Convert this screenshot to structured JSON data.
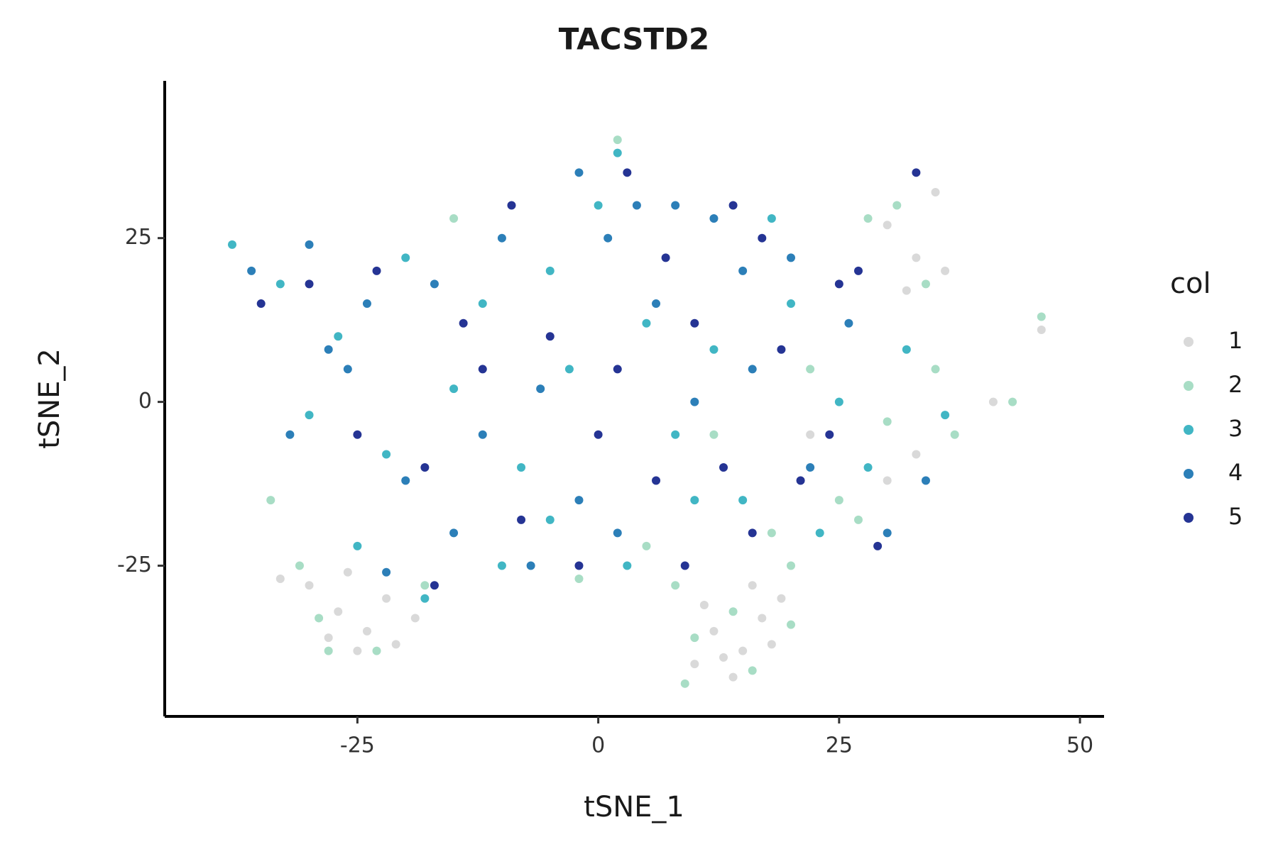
{
  "chart_data": {
    "type": "scatter",
    "title": "TACSTD2",
    "x_label": "tSNE_1",
    "y_label": "tSNE_2",
    "legend_title": "col",
    "legend_position": "right",
    "grid": false,
    "xlim": [
      -45,
      52.5
    ],
    "ylim": [
      -48,
      49
    ],
    "xticks": [
      -25,
      0,
      25,
      50
    ],
    "yticks": [
      -25,
      0,
      25
    ],
    "series": [
      {
        "name": "1",
        "color": "#d9d9d9",
        "x": [
          -30,
          -27,
          -24,
          -22,
          -28,
          -25,
          -19,
          -33,
          -21,
          -26,
          12,
          15,
          17,
          10,
          14,
          18,
          11,
          16,
          13,
          19,
          30,
          33,
          35,
          32,
          36,
          46,
          41,
          33,
          30,
          22
        ],
        "values": [
          -28,
          -32,
          -35,
          -30,
          -36,
          -38,
          -33,
          -27,
          -37,
          -26,
          -35,
          -38,
          -33,
          -40,
          -42,
          -37,
          -31,
          -28,
          -39,
          -30,
          27,
          22,
          32,
          17,
          20,
          11,
          0,
          -8,
          -12,
          -5
        ]
      },
      {
        "name": "2",
        "color": "#a8ddc5",
        "x": [
          -31,
          -23,
          -29,
          -18,
          -34,
          10,
          14,
          20,
          16,
          8,
          28,
          34,
          31,
          46,
          43,
          25,
          18,
          30,
          35,
          5,
          -2,
          12,
          22,
          -15,
          2,
          27,
          -28,
          9,
          37,
          20
        ],
        "values": [
          -25,
          -38,
          -33,
          -28,
          -15,
          -36,
          -32,
          -34,
          -41,
          -28,
          28,
          18,
          30,
          13,
          0,
          -15,
          -20,
          -3,
          5,
          -22,
          -27,
          -5,
          5,
          28,
          40,
          -18,
          -38,
          -43,
          -5,
          -25
        ]
      },
      {
        "name": "3",
        "color": "#41b6c4",
        "x": [
          -38,
          -33,
          -27,
          -20,
          -12,
          -30,
          -22,
          -15,
          -8,
          -3,
          0,
          2,
          -5,
          5,
          8,
          12,
          15,
          20,
          25,
          28,
          32,
          36,
          -10,
          -5,
          3,
          18,
          -25,
          -18,
          10,
          23
        ],
        "values": [
          24,
          18,
          10,
          22,
          15,
          -2,
          -8,
          2,
          -10,
          5,
          30,
          38,
          20,
          12,
          -5,
          8,
          -15,
          15,
          0,
          -10,
          8,
          -2,
          -25,
          -18,
          -25,
          28,
          -22,
          -30,
          -15,
          -20
        ]
      },
      {
        "name": "4",
        "color": "#2c7fb8",
        "x": [
          -36,
          -30,
          -24,
          -17,
          -32,
          -26,
          -20,
          -12,
          -6,
          -2,
          1,
          -2,
          4,
          8,
          12,
          15,
          6,
          10,
          16,
          22,
          26,
          30,
          34,
          -7,
          2,
          -15,
          -28,
          -10,
          20,
          -22
        ],
        "values": [
          20,
          24,
          15,
          18,
          -5,
          5,
          -12,
          -5,
          2,
          -15,
          25,
          35,
          30,
          30,
          28,
          20,
          15,
          0,
          5,
          -10,
          12,
          -20,
          -12,
          -25,
          -20,
          -20,
          8,
          25,
          22,
          -26
        ]
      },
      {
        "name": "5",
        "color": "#253494",
        "x": [
          -35,
          -23,
          -12,
          -25,
          -18,
          -5,
          0,
          3,
          7,
          14,
          17,
          10,
          6,
          19,
          25,
          29,
          33,
          -8,
          -2,
          24,
          -30,
          13,
          -17,
          2,
          27,
          -14,
          16,
          -9,
          21,
          9
        ],
        "values": [
          15,
          20,
          5,
          -5,
          -10,
          10,
          -5,
          35,
          22,
          30,
          25,
          12,
          -12,
          8,
          18,
          -22,
          35,
          -18,
          -25,
          -5,
          18,
          -10,
          -28,
          5,
          20,
          12,
          -20,
          30,
          -12,
          -25
        ]
      }
    ]
  }
}
